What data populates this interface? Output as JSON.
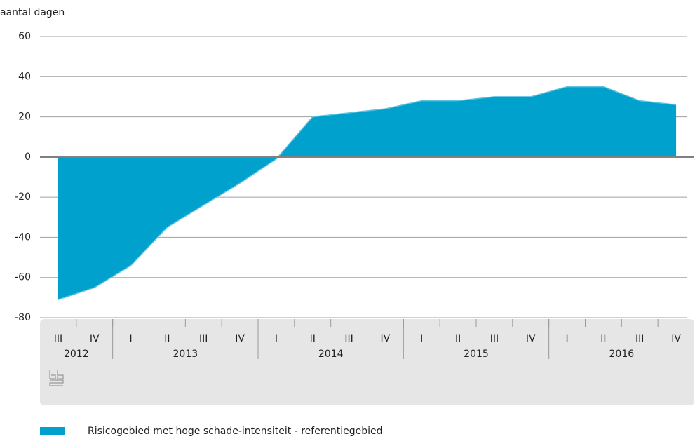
{
  "chart_data": {
    "type": "area",
    "y_label": "aantal dagen",
    "categories": [
      "III",
      "IV",
      "I",
      "II",
      "III",
      "IV",
      "I",
      "II",
      "III",
      "IV",
      "I",
      "II",
      "III",
      "IV",
      "I",
      "II",
      "III",
      "IV"
    ],
    "x_groups": [
      {
        "label": "2012",
        "count": 2
      },
      {
        "label": "2013",
        "count": 4
      },
      {
        "label": "2014",
        "count": 4
      },
      {
        "label": "2015",
        "count": 4
      },
      {
        "label": "2016",
        "count": 4
      }
    ],
    "series": [
      {
        "name": "Risicogebied met hoge schade-intensiteit - referentiegebied",
        "color": "#00a1cd",
        "values": [
          -71,
          -65,
          -54,
          -35,
          -24,
          -13,
          -1,
          20,
          22,
          24,
          28,
          28,
          30,
          30,
          35,
          35,
          28,
          26
        ]
      }
    ],
    "ylim": [
      -80,
      60
    ],
    "yticks": [
      -80,
      -60,
      -40,
      -20,
      0,
      20,
      40,
      60
    ],
    "grid": true
  }
}
